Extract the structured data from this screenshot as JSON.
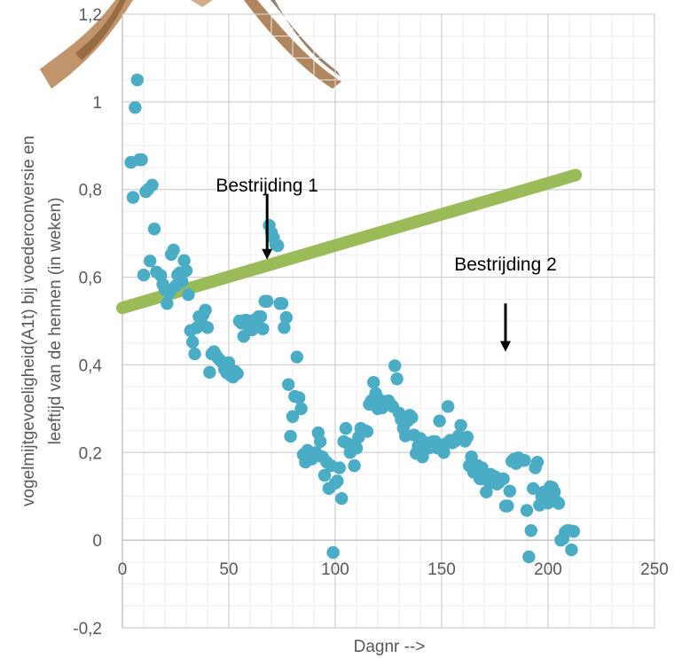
{
  "chart_data": {
    "type": "scatter",
    "xlabel": "Dagnr -->",
    "ylabel_lines": [
      "vogelmijtgevoeligheid(A1t) bij voederconversie en",
      "leeftijd van de hennen (in weken)"
    ],
    "xlim": [
      0,
      250
    ],
    "ylim": [
      -0.2,
      1.2
    ],
    "x_ticks": [
      0,
      50,
      100,
      150,
      200,
      250
    ],
    "x_tick_labels": [
      "0",
      "50",
      "100",
      "150",
      "200",
      "250"
    ],
    "y_ticks": [
      -0.2,
      0,
      0.2,
      0.4,
      0.6,
      0.8,
      1,
      1.2
    ],
    "y_tick_labels": [
      "-0,2",
      "0",
      "0,2",
      "0,4",
      "0,6",
      "0,8",
      "1",
      "1,2"
    ],
    "grid": true,
    "point_color": "#4bacc6",
    "trend_color": "#9bbb59",
    "trendline": {
      "x": [
        0,
        213
      ],
      "y": [
        0.53,
        0.833
      ]
    },
    "annotations": [
      {
        "text": "Bestrijding 1",
        "x": 68,
        "y": 0.795,
        "arrow_from": 0.79,
        "arrow_to": 0.64
      },
      {
        "text": "Bestrijding 2",
        "x": 180,
        "y": 0.615,
        "arrow_from": 0.54,
        "arrow_to": 0.43
      }
    ],
    "points": [
      [
        4,
        0.862
      ],
      [
        5,
        0.782
      ],
      [
        6,
        0.987
      ],
      [
        7,
        1.05
      ],
      [
        8,
        0.868
      ],
      [
        9,
        0.868
      ],
      [
        10,
        0.605
      ],
      [
        11,
        0.795
      ],
      [
        12,
        0.8
      ],
      [
        13,
        0.637
      ],
      [
        14,
        0.81
      ],
      [
        15,
        0.71
      ],
      [
        16,
        0.612
      ],
      [
        18,
        0.604
      ],
      [
        19,
        0.584
      ],
      [
        20,
        0.572
      ],
      [
        21,
        0.54
      ],
      [
        22,
        0.565
      ],
      [
        23,
        0.652
      ],
      [
        24,
        0.662
      ],
      [
        25,
        0.58
      ],
      [
        26,
        0.605
      ],
      [
        27,
        0.61
      ],
      [
        28,
        0.59
      ],
      [
        29,
        0.638
      ],
      [
        30,
        0.615
      ],
      [
        31,
        0.56
      ],
      [
        32,
        0.478
      ],
      [
        33,
        0.452
      ],
      [
        34,
        0.425
      ],
      [
        35,
        0.485
      ],
      [
        36,
        0.51
      ],
      [
        37,
        0.498
      ],
      [
        38,
        0.515
      ],
      [
        39,
        0.525
      ],
      [
        40,
        0.485
      ],
      [
        41,
        0.383
      ],
      [
        42,
        0.425
      ],
      [
        43,
        0.43
      ],
      [
        44,
        0.422
      ],
      [
        45,
        0.415
      ],
      [
        46,
        0.41
      ],
      [
        47,
        0.405
      ],
      [
        48,
        0.39
      ],
      [
        49,
        0.382
      ],
      [
        50,
        0.405
      ],
      [
        51,
        0.375
      ],
      [
        52,
        0.372
      ],
      [
        53,
        0.385
      ],
      [
        54,
        0.38
      ],
      [
        55,
        0.5
      ],
      [
        56,
        0.495
      ],
      [
        57,
        0.465
      ],
      [
        58,
        0.502
      ],
      [
        59,
        0.49
      ],
      [
        60,
        0.5
      ],
      [
        61,
        0.48
      ],
      [
        62,
        0.502
      ],
      [
        63,
        0.505
      ],
      [
        64,
        0.51
      ],
      [
        65,
        0.51
      ],
      [
        66,
        0.482
      ],
      [
        67,
        0.545
      ],
      [
        68,
        0.545
      ],
      [
        69,
        0.718
      ],
      [
        70,
        0.702
      ],
      [
        71,
        0.69
      ],
      [
        72,
        0.675
      ],
      [
        73,
        0.672
      ],
      [
        74,
        0.54
      ],
      [
        75,
        0.54
      ],
      [
        76,
        0.485
      ],
      [
        77,
        0.508
      ],
      [
        78,
        0.355
      ],
      [
        79,
        0.237
      ],
      [
        80,
        0.282
      ],
      [
        81,
        0.328
      ],
      [
        82,
        0.418
      ],
      [
        83,
        0.325
      ],
      [
        84,
        0.3
      ],
      [
        85,
        0.195
      ],
      [
        86,
        0.178
      ],
      [
        87,
        0.205
      ],
      [
        88,
        0.2
      ],
      [
        89,
        0.185
      ],
      [
        90,
        0.19
      ],
      [
        91,
        0.2
      ],
      [
        92,
        0.245
      ],
      [
        93,
        0.225
      ],
      [
        94,
        0.19
      ],
      [
        95,
        0.148
      ],
      [
        96,
        0.178
      ],
      [
        97,
        0.118
      ],
      [
        98,
        0.17
      ],
      [
        99,
        -0.028
      ],
      [
        100,
        0.13
      ],
      [
        101,
        0.135
      ],
      [
        102,
        0.165
      ],
      [
        103,
        0.095
      ],
      [
        104,
        0.225
      ],
      [
        105,
        0.255
      ],
      [
        106,
        0.22
      ],
      [
        107,
        0.2
      ],
      [
        108,
        0.215
      ],
      [
        109,
        0.17
      ],
      [
        110,
        0.21
      ],
      [
        111,
        0.235
      ],
      [
        112,
        0.255
      ],
      [
        113,
        0.25
      ],
      [
        114,
        0.25
      ],
      [
        115,
        0.248
      ],
      [
        116,
        0.31
      ],
      [
        117,
        0.318
      ],
      [
        118,
        0.36
      ],
      [
        119,
        0.335
      ],
      [
        120,
        0.3
      ],
      [
        121,
        0.32
      ],
      [
        122,
        0.302
      ],
      [
        123,
        0.31
      ],
      [
        124,
        0.31
      ],
      [
        125,
        0.318
      ],
      [
        126,
        0.31
      ],
      [
        127,
        0.305
      ],
      [
        128,
        0.398
      ],
      [
        129,
        0.368
      ],
      [
        130,
        0.29
      ],
      [
        131,
        0.275
      ],
      [
        132,
        0.255
      ],
      [
        133,
        0.238
      ],
      [
        134,
        0.272
      ],
      [
        135,
        0.285
      ],
      [
        136,
        0.28
      ],
      [
        137,
        0.24
      ],
      [
        138,
        0.198
      ],
      [
        139,
        0.215
      ],
      [
        140,
        0.232
      ],
      [
        141,
        0.19
      ],
      [
        142,
        0.208
      ],
      [
        143,
        0.222
      ],
      [
        144,
        0.21
      ],
      [
        145,
        0.215
      ],
      [
        146,
        0.225
      ],
      [
        147,
        0.225
      ],
      [
        148,
        0.21
      ],
      [
        149,
        0.272
      ],
      [
        150,
        0.21
      ],
      [
        151,
        0.2
      ],
      [
        152,
        0.22
      ],
      [
        153,
        0.305
      ],
      [
        154,
        0.228
      ],
      [
        155,
        0.222
      ],
      [
        156,
        0.225
      ],
      [
        157,
        0.228
      ],
      [
        158,
        0.238
      ],
      [
        159,
        0.262
      ],
      [
        160,
        0.232
      ],
      [
        161,
        0.226
      ],
      [
        162,
        0.235
      ],
      [
        163,
        0.17
      ],
      [
        164,
        0.19
      ],
      [
        165,
        0.155
      ],
      [
        166,
        0.165
      ],
      [
        167,
        0.17
      ],
      [
        168,
        0.14
      ],
      [
        169,
        0.165
      ],
      [
        170,
        0.14
      ],
      [
        171,
        0.11
      ],
      [
        172,
        0.135
      ],
      [
        173,
        0.15
      ],
      [
        174,
        0.132
      ],
      [
        175,
        0.145
      ],
      [
        176,
        0.128
      ],
      [
        177,
        0.132
      ],
      [
        178,
        0.14
      ],
      [
        179,
        0.14
      ],
      [
        180,
        0.078
      ],
      [
        181,
        0.078
      ],
      [
        182,
        0.112
      ],
      [
        183,
        0.18
      ],
      [
        184,
        0.185
      ],
      [
        185,
        0.175
      ],
      [
        186,
        0.188
      ],
      [
        187,
        0.183
      ],
      [
        188,
        0.182
      ],
      [
        189,
        0.182
      ],
      [
        190,
        0.068
      ],
      [
        191,
        -0.038
      ],
      [
        192,
        0.022
      ],
      [
        193,
        0.118
      ],
      [
        194,
        0.165
      ],
      [
        195,
        0.178
      ],
      [
        196,
        0.08
      ],
      [
        197,
        0.1
      ],
      [
        198,
        0.11
      ],
      [
        199,
        0.102
      ],
      [
        200,
        0.085
      ],
      [
        201,
        0.122
      ],
      [
        202,
        0.12
      ],
      [
        203,
        0.11
      ],
      [
        204,
        0.088
      ],
      [
        205,
        0.084
      ],
      [
        206,
        0.0
      ],
      [
        207,
        0.003
      ],
      [
        208,
        0.018
      ],
      [
        209,
        0.022
      ],
      [
        210,
        0.022
      ],
      [
        211,
        -0.022
      ],
      [
        212,
        0.02
      ]
    ]
  }
}
